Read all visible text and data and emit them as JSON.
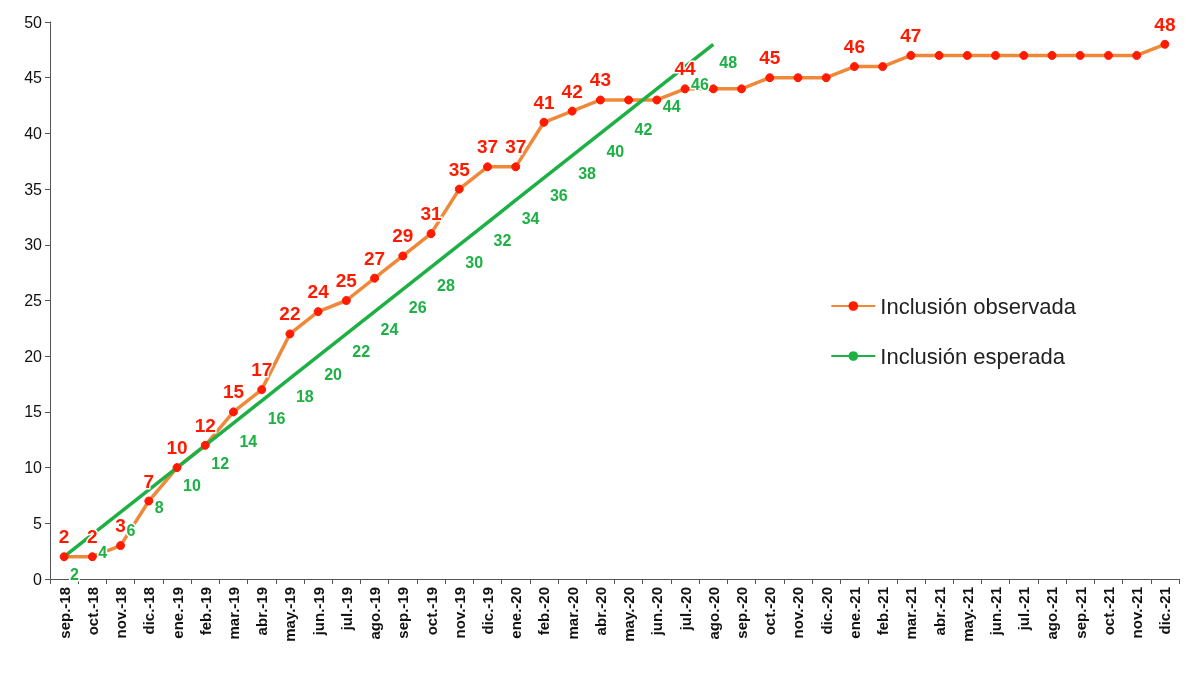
{
  "chart_data": {
    "type": "line",
    "categories": [
      "sep.-18",
      "oct.-18",
      "nov.-18",
      "dic.-18",
      "ene.-19",
      "feb.-19",
      "mar.-19",
      "abr.-19",
      "may.-19",
      "jun.-19",
      "jul.-19",
      "ago.-19",
      "sep.-19",
      "oct.-19",
      "nov.-19",
      "dic.-19",
      "ene.-20",
      "feb.-20",
      "mar.-20",
      "abr.-20",
      "may.-20",
      "jun.-20",
      "jul.-20",
      "ago.-20",
      "sep.-20",
      "oct.-20",
      "nov.-20",
      "dic.-20",
      "ene.-21",
      "feb.-21",
      "mar.-21",
      "abr.-21",
      "may.-21",
      "jun.-21",
      "jul.-21",
      "ago.-21",
      "sep.-21",
      "oct.-21",
      "nov.-21",
      "dic.-21"
    ],
    "series": [
      {
        "name": "Inclusión observada",
        "color": "#f0883a",
        "marker": "circle",
        "values": [
          2,
          2,
          3,
          7,
          10,
          12,
          15,
          17,
          22,
          24,
          25,
          27,
          29,
          31,
          35,
          37,
          37,
          41,
          42,
          43,
          43,
          43,
          44,
          44,
          44,
          45,
          45,
          45,
          46,
          46,
          47,
          47,
          47,
          47,
          47,
          47,
          47,
          47,
          47,
          48
        ],
        "value_labels": [
          "2",
          "2",
          "3",
          "7",
          "10",
          "12",
          "15",
          "17",
          "22",
          "24",
          "25",
          "27",
          "29",
          "31",
          "35",
          "37",
          "37",
          "41",
          "42",
          "43",
          null,
          null,
          "44",
          null,
          null,
          "45",
          null,
          null,
          "46",
          null,
          "47",
          null,
          null,
          null,
          null,
          null,
          null,
          null,
          null,
          "48"
        ]
      },
      {
        "name": "Inclusión esperada",
        "color": "#1db044",
        "marker": "none",
        "values": [
          2,
          4,
          6,
          8,
          10,
          12,
          14,
          16,
          18,
          20,
          22,
          24,
          26,
          28,
          30,
          32,
          34,
          36,
          38,
          40,
          42,
          44,
          46,
          48,
          null,
          null,
          null,
          null,
          null,
          null,
          null,
          null,
          null,
          null,
          null,
          null,
          null,
          null,
          null,
          null
        ],
        "value_labels": [
          "2",
          "4",
          "6",
          "8",
          "10",
          "12",
          "14",
          "16",
          "18",
          "20",
          "22",
          "24",
          "26",
          "28",
          "30",
          "32",
          "34",
          "36",
          "38",
          "40",
          "42",
          "44",
          "46",
          "48",
          null,
          null,
          null,
          null,
          null,
          null,
          null,
          null,
          null,
          null,
          null,
          null,
          null,
          null,
          null,
          null
        ]
      }
    ],
    "ylim": [
      0,
      50
    ],
    "yticks": [
      0,
      5,
      10,
      15,
      20,
      25,
      30,
      35,
      40,
      45,
      50
    ],
    "grid": false,
    "legend": "right"
  }
}
